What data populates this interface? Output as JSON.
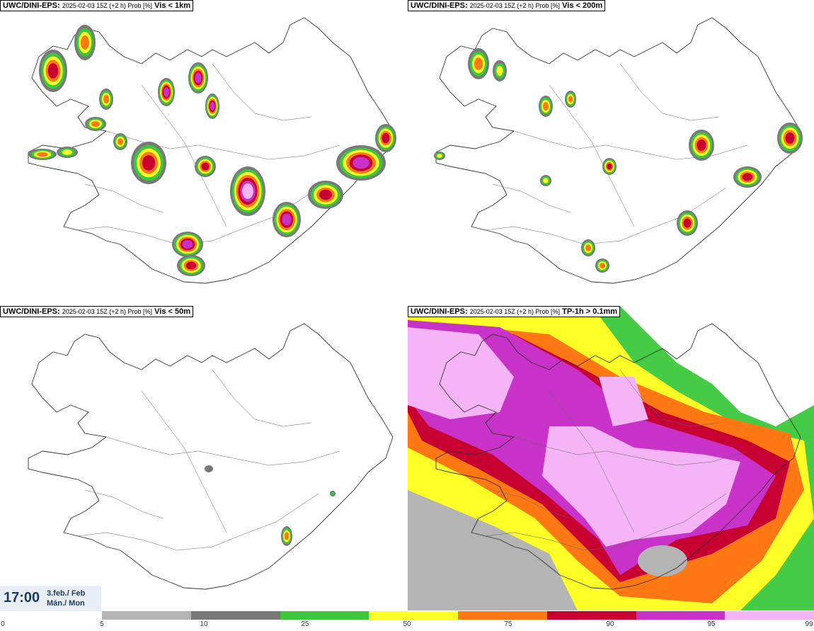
{
  "panels": [
    {
      "model": "UWC/DINI-EPS",
      "run": "2025-02-03 15Z (+2 h) Prob [%]",
      "variable": "Vis < 1km"
    },
    {
      "model": "UWC/DINI-EPS",
      "run": "2025-02-03 15Z (+2 h) Prob [%]",
      "variable": "Vis < 200m"
    },
    {
      "model": "UWC/DINI-EPS",
      "run": "2025-02-03 15Z (+2 h) Prob [%]",
      "variable": "Vis < 50m"
    },
    {
      "model": "UWC/DINI-EPS",
      "run": "2025-02-03 15Z (+2 h) Prob [%]",
      "variable": "TP-1h > 0.1mm"
    }
  ],
  "time": {
    "clock": "17:00",
    "date": "3.feb./ Feb",
    "weekday": "Mán./ Mon"
  },
  "legend": {
    "ticks": [
      "0",
      "5",
      "10",
      "25",
      "50",
      "75",
      "90",
      "95",
      "99"
    ],
    "colors": [
      "#b4b4b4",
      "#787878",
      "#3cc83c",
      "#ffff28",
      "#ff7814",
      "#c80032",
      "#c832c8",
      "#f5b4f5"
    ]
  }
}
